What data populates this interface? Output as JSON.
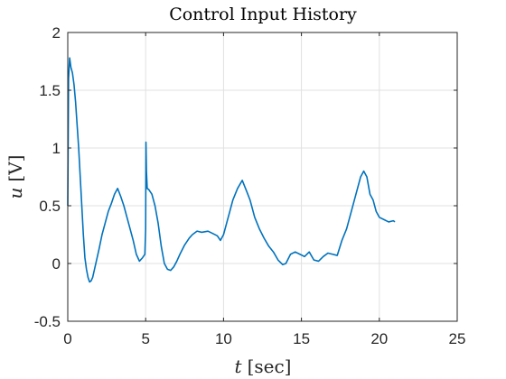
{
  "chart_data": {
    "type": "line",
    "title": "Control Input History",
    "xlabel_var": "t",
    "xlabel_unit": "[sec]",
    "ylabel_var": "u",
    "ylabel_unit": "[V]",
    "xlim": [
      0,
      25
    ],
    "ylim": [
      -0.5,
      2
    ],
    "xticks": [
      0,
      5,
      10,
      15,
      20,
      25
    ],
    "xtick_labels": [
      "0",
      "5",
      "10",
      "15",
      "20",
      "25"
    ],
    "yticks": [
      -0.5,
      0,
      0.5,
      1,
      1.5,
      2
    ],
    "ytick_labels": [
      "-0.5",
      "0",
      "0.5",
      "1",
      "1.5",
      "2"
    ],
    "grid": true,
    "line_color": "#0072BD",
    "series": [
      {
        "x": [
          0,
          0.05,
          0.12,
          0.2,
          0.3,
          0.4,
          0.5,
          0.6,
          0.7,
          0.8,
          0.9,
          1.0,
          1.1,
          1.2,
          1.3,
          1.4,
          1.5,
          1.6,
          1.8,
          2.0,
          2.2,
          2.4,
          2.6,
          2.8,
          3.0,
          3.2,
          3.4,
          3.6,
          3.8,
          4.0,
          4.2,
          4.4,
          4.6,
          4.8,
          4.95,
          5.0,
          5.02,
          5.05,
          5.1,
          5.2,
          5.4,
          5.6,
          5.8,
          6.0,
          6.2,
          6.4,
          6.6,
          6.8,
          7.0,
          7.2,
          7.5,
          7.8,
          8.0,
          8.3,
          8.6,
          9.0,
          9.3,
          9.6,
          9.8,
          10.0,
          10.3,
          10.6,
          10.9,
          11.2,
          11.5,
          11.7,
          12.0,
          12.3,
          12.6,
          12.9,
          13.2,
          13.5,
          13.8,
          14.0,
          14.3,
          14.6,
          14.9,
          15.2,
          15.5,
          15.8,
          16.1,
          16.4,
          16.7,
          17.0,
          17.3,
          17.6,
          17.9,
          18.2,
          18.5,
          18.8,
          19.0,
          19.2,
          19.4,
          19.6,
          19.8,
          20.0,
          20.3,
          20.6,
          20.9,
          21.0
        ],
        "y": [
          0.5,
          1.6,
          1.78,
          1.7,
          1.65,
          1.55,
          1.4,
          1.2,
          1.0,
          0.75,
          0.5,
          0.25,
          0.05,
          -0.05,
          -0.12,
          -0.16,
          -0.15,
          -0.12,
          0.0,
          0.12,
          0.25,
          0.35,
          0.45,
          0.52,
          0.6,
          0.65,
          0.58,
          0.5,
          0.4,
          0.3,
          0.2,
          0.08,
          0.02,
          0.05,
          0.08,
          0.3,
          1.05,
          0.8,
          0.65,
          0.64,
          0.6,
          0.5,
          0.35,
          0.15,
          0.0,
          -0.05,
          -0.06,
          -0.03,
          0.02,
          0.08,
          0.16,
          0.22,
          0.25,
          0.28,
          0.27,
          0.28,
          0.26,
          0.24,
          0.2,
          0.25,
          0.4,
          0.55,
          0.65,
          0.72,
          0.62,
          0.55,
          0.4,
          0.3,
          0.22,
          0.15,
          0.1,
          0.03,
          -0.01,
          0.0,
          0.08,
          0.1,
          0.08,
          0.06,
          0.1,
          0.03,
          0.02,
          0.06,
          0.09,
          0.08,
          0.07,
          0.2,
          0.3,
          0.45,
          0.6,
          0.75,
          0.8,
          0.75,
          0.6,
          0.55,
          0.45,
          0.4,
          0.38,
          0.36,
          0.37,
          0.36
        ]
      }
    ]
  }
}
